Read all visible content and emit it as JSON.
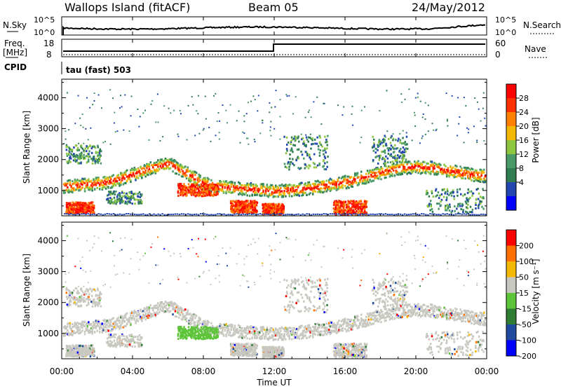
{
  "header": {
    "station": "Wallops Island (fitACF)",
    "beam": "Beam 05",
    "date": "24/May/2012"
  },
  "top_panels": {
    "nsky_label": "N.Sky",
    "nsearch_label": "N.Search",
    "noise_ticks": [
      "10^5",
      "10^0"
    ],
    "freq_label": "Freq.",
    "freq_unit": "[MHz]",
    "freq_ticks": [
      "18",
      "8"
    ],
    "nave_label": "Nave",
    "nave_ticks": [
      "60",
      "0"
    ],
    "cpid_label": "CPID",
    "cpid_value": "tau (fast) 503"
  },
  "chart_data": [
    {
      "type": "heatmap",
      "name": "power",
      "ylabel": "Slant Range [km]",
      "xlabel": "Time UT",
      "x_ticks": [
        "00:00",
        "04:00",
        "08:00",
        "12:00",
        "16:00",
        "20:00",
        "00:00"
      ],
      "x_range_hours": [
        0,
        24
      ],
      "y_ticks": [
        1000,
        2000,
        3000,
        4000
      ],
      "ylim": [
        180,
        4600
      ],
      "colorbar": {
        "label": "Power [dB]",
        "ticks": [
          "28",
          "24",
          "20",
          "16",
          "12",
          "8",
          "4"
        ],
        "colors": [
          "#0000ff",
          "#2346b0",
          "#2f7d50",
          "#4a9a68",
          "#8ec63f",
          "#f5b800",
          "#ff8000",
          "#ff3000",
          "#ff0000"
        ]
      },
      "bands": [
        {
          "t": [
            0,
            1,
            2,
            3,
            4,
            5,
            6,
            7,
            8,
            9,
            10,
            11,
            12,
            13,
            14,
            15,
            16,
            17,
            18,
            19,
            20,
            21,
            22,
            23,
            24
          ],
          "r": [
            1150,
            1200,
            1250,
            1350,
            1550,
            1750,
            1900,
            1600,
            1250,
            1150,
            1100,
            1050,
            1000,
            1050,
            1100,
            1200,
            1300,
            1450,
            1600,
            1750,
            1800,
            1750,
            1650,
            1550,
            1500
          ]
        }
      ]
    },
    {
      "type": "heatmap",
      "name": "velocity",
      "ylabel": "Slant Range [km]",
      "xlabel": "Time UT",
      "x_ticks": [
        "00:00",
        "04:00",
        "08:00",
        "12:00",
        "16:00",
        "20:00",
        "00:00"
      ],
      "x_range_hours": [
        0,
        24
      ],
      "y_ticks": [
        1000,
        2000,
        3000,
        4000
      ],
      "ylim": [
        180,
        4600
      ],
      "colorbar": {
        "label": "Velocity [m s⁻¹]",
        "ticks": [
          "200",
          "100",
          "50",
          "15",
          "-15",
          "-50",
          "-100",
          "-200"
        ],
        "colors": [
          "#0000ff",
          "#1f4a9e",
          "#2e7d32",
          "#5ec43a",
          "#c8c8c0",
          "#f5b800",
          "#ff7000",
          "#ff0000"
        ]
      }
    }
  ],
  "colors": {
    "scatter_grey": "#c8c8c0",
    "mark_green": "#4fd12e",
    "mark_red": "#ff1a00"
  }
}
